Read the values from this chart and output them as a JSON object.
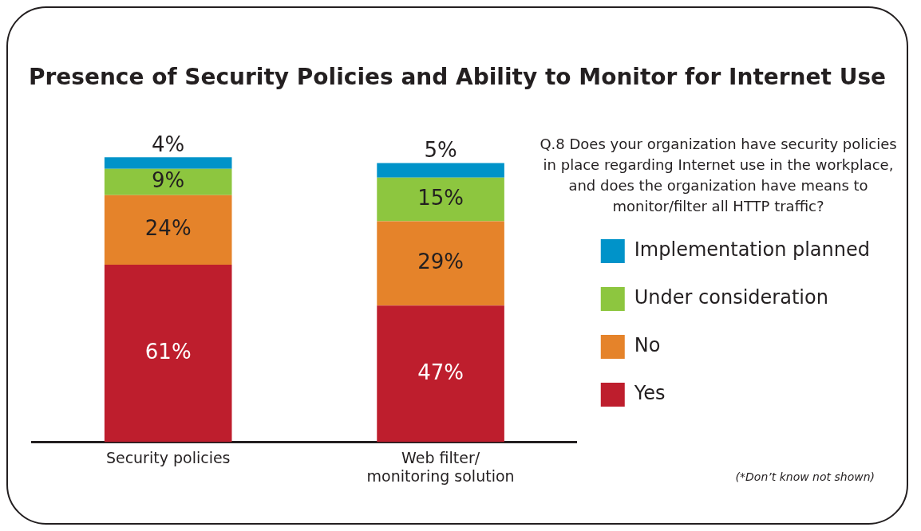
{
  "chart_data": {
    "type": "bar",
    "title": "Presence of Security Policies and Ability to Monitor for Internet Use",
    "categories": [
      "Security policies",
      "Web filter/ monitoring solution"
    ],
    "stacked": true,
    "legend": "right",
    "grid": false,
    "series": [
      {
        "name": "Yes",
        "color": "#be1e2d",
        "values": [
          61,
          47
        ],
        "value_labels": [
          "61%",
          "47%"
        ]
      },
      {
        "name": "No",
        "color": "#e5832a",
        "values": [
          24,
          29
        ],
        "value_labels": [
          "24%",
          "29%"
        ]
      },
      {
        "name": "Under consideration",
        "color": "#8dc63f",
        "values": [
          9,
          15
        ],
        "value_labels": [
          "9%",
          "15%"
        ]
      },
      {
        "name": "Implementation planned",
        "color": "#0093c9",
        "values": [
          4,
          5
        ],
        "value_labels": [
          "4%",
          "5%"
        ]
      }
    ],
    "annotations": [
      "Q.8 Does your organization have security policies in place regarding Internet use in the workplace, and does the organization have means to monitor/filter all HTTP traffic?",
      "(*Don’t know not shown)"
    ]
  }
}
